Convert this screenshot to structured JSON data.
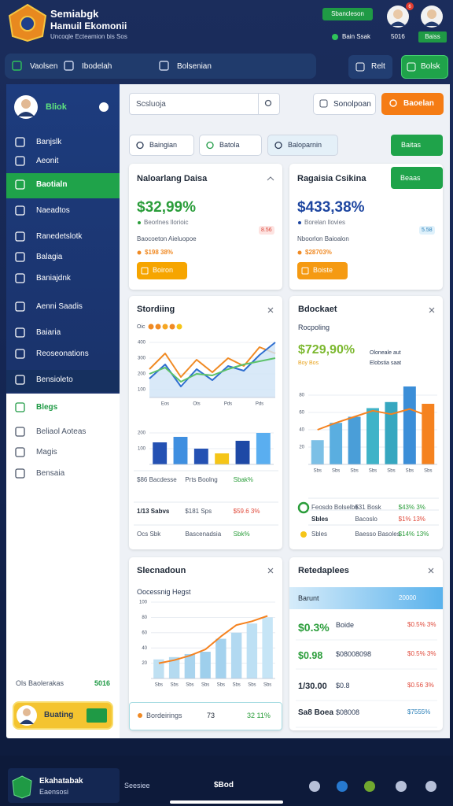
{
  "header": {
    "title": "Semiabgk",
    "subtitle": "Hamuil Ekomonii",
    "caption": "Uncoqle Ecteamion bis Sos",
    "badge": "Sbancleson",
    "avatar_count": "6",
    "status_label": "Bain Ssak",
    "status_value": "5016",
    "status_button": "Baiss"
  },
  "nav": {
    "items": [
      "Vaolsen",
      "Ibodelah",
      "Bolsenian"
    ],
    "buttons": [
      "Relt",
      "Bolsk"
    ]
  },
  "sidebar": {
    "profile": "Bliok",
    "items": [
      "Banjslk",
      "Aeonit",
      "Baotialn",
      "Naeadtos",
      "Ranedetslotk",
      "Balagia",
      "Baniajdnk",
      "Aenni Saadis",
      "Baiaria",
      "Reoseonations",
      "Bensioleto",
      "Blegs",
      "Beliaol Aoteas",
      "Magis",
      "Bensaia"
    ],
    "footer_label": "Ols Baolerakas",
    "footer_value": "5016",
    "user_button": "Buating"
  },
  "toolbar": {
    "search": "Scsluoja",
    "button": "Sonolpoan",
    "action": "Baoelan"
  },
  "filters": {
    "chips": [
      "Baingian",
      "Batola",
      "Baloparnin"
    ],
    "action": "Baitas"
  },
  "cards": [
    {
      "title": "Naloarlang Daisa",
      "value": "$32,99%",
      "note": "Beorlnes llorioic",
      "change": "8.56",
      "subnote": "Baocoeton Aieluopoe",
      "delta": "$198 38%",
      "button": "Boiron"
    },
    {
      "title": "Ragaisia Csikina",
      "value": "$433,38%",
      "note": "Borelan llovies",
      "change": "5.58",
      "subnote": "Nboorlon Baioalon",
      "delta": "$28703%",
      "button": "Boiste",
      "top_button": "Beaas"
    }
  ],
  "panels": [
    {
      "title": "Stordiing",
      "legend": "Oic",
      "footer": [
        [
          "$86 Bacdesse",
          "Prts Boolng",
          "Sbak%"
        ],
        [
          "1/13 Sabvs",
          "$181 Sps",
          "$59.6 3%"
        ],
        [
          "Ocs Sbk",
          "Bascenadsia",
          "Sbk%"
        ]
      ]
    },
    {
      "title": "Bdockaet",
      "subtitle": "Rocpoling",
      "value": "$729,90%",
      "value_note": "Boy Bos",
      "side": [
        "Oloneale aut",
        "Elobstia saat"
      ],
      "footer": [
        [
          "Feosdo Bolselbe",
          "$31 Bosk",
          "$43% 3%"
        ],
        [
          "Sbles",
          "Bacoslo",
          "$1% 13%"
        ],
        [
          "Sbles",
          "Baesso Basoles",
          "$14% 13%"
        ]
      ]
    },
    {
      "title": "Slecnadoun",
      "subtitle": "Oocessnig Hegst",
      "footer": [
        "Bordeirings",
        "73",
        "32 11%"
      ]
    },
    {
      "title": "Retedaplees",
      "band": [
        "Barunt",
        "20000"
      ],
      "rows": [
        [
          "$0.3%",
          "Boide",
          "$0.5% 3%"
        ],
        [
          "$0.98",
          "$08008098",
          "$0.5% 3%"
        ],
        [
          "1/30.00",
          "$0.8",
          "$0.56 3%"
        ],
        [
          "Sa8 Boea",
          "$08008",
          "$7555%"
        ]
      ]
    }
  ],
  "charts": [
    {
      "type": "line",
      "categories": [
        null,
        "Eos",
        null,
        "Ots",
        null,
        "Pds",
        null,
        "Pds",
        null
      ],
      "ylim": [
        50,
        450
      ],
      "yticks": [
        100,
        200,
        300,
        400
      ],
      "series": [
        {
          "color": "#f08a24",
          "values": [
            230,
            330,
            180,
            290,
            210,
            300,
            250,
            370,
            330
          ]
        },
        {
          "color": "#2f6fd0",
          "fill": "#cfe4f6",
          "values": [
            170,
            260,
            120,
            230,
            160,
            250,
            220,
            320,
            400
          ]
        },
        {
          "color": "#5cc26a",
          "values": [
            200,
            240,
            150,
            200,
            190,
            230,
            260,
            280,
            300
          ]
        }
      ]
    },
    {
      "type": "bar",
      "ylim": [
        0,
        250
      ],
      "yticks": [
        100,
        200
      ],
      "series": [
        {
          "colors": [
            "#2451b3",
            "#3f8fe0",
            "#2451b3",
            "#f5c518",
            "#1e49a6",
            "#5aaef0"
          ],
          "values": [
            140,
            175,
            100,
            70,
            150,
            200
          ]
        }
      ]
    },
    {
      "type": "combo",
      "categories": [
        "Sbs",
        "Sbs",
        "Sbs",
        "Sbs",
        "Sbs",
        "Sbs",
        "Sbs"
      ],
      "ylim": [
        0,
        100
      ],
      "yticks": [
        20,
        40,
        60,
        80
      ],
      "series": [
        {
          "type": "bar",
          "colors": [
            "#7cc0e6",
            "#5aaee0",
            "#4a9ed8",
            "#3fb3c8",
            "#36a7c0",
            "#3b8ed8",
            "#f5821f"
          ],
          "values": [
            28,
            48,
            55,
            65,
            72,
            90,
            70
          ]
        },
        {
          "type": "line",
          "color": "#f5821f",
          "values": [
            40,
            48,
            55,
            62,
            58,
            64,
            56
          ]
        }
      ]
    },
    {
      "type": "combo",
      "categories": [
        "Sbs",
        "Sbs",
        "Sbs",
        "Sbs",
        "Sbs",
        "Sbs",
        "Sbs",
        "Sbs"
      ],
      "ylim": [
        0,
        100
      ],
      "yticks": [
        20,
        40,
        60,
        80,
        100
      ],
      "series": [
        {
          "type": "bar",
          "colors": [
            "#bfe0f2",
            "#b4daf0",
            "#a9d4ee",
            "#9ecfec",
            "#a4d2ee",
            "#b2d9f1",
            "#bde0f4",
            "#c6e5f6"
          ],
          "values": [
            25,
            28,
            32,
            35,
            52,
            60,
            72,
            80
          ]
        },
        {
          "type": "line",
          "color": "#f5821f",
          "values": [
            20,
            24,
            30,
            38,
            55,
            70,
            75,
            82
          ]
        }
      ]
    }
  ],
  "bottom": {
    "title": "Ekahatabak",
    "subtitle": "Eaensosi",
    "label": "Seesiee",
    "value": "$Bod"
  }
}
